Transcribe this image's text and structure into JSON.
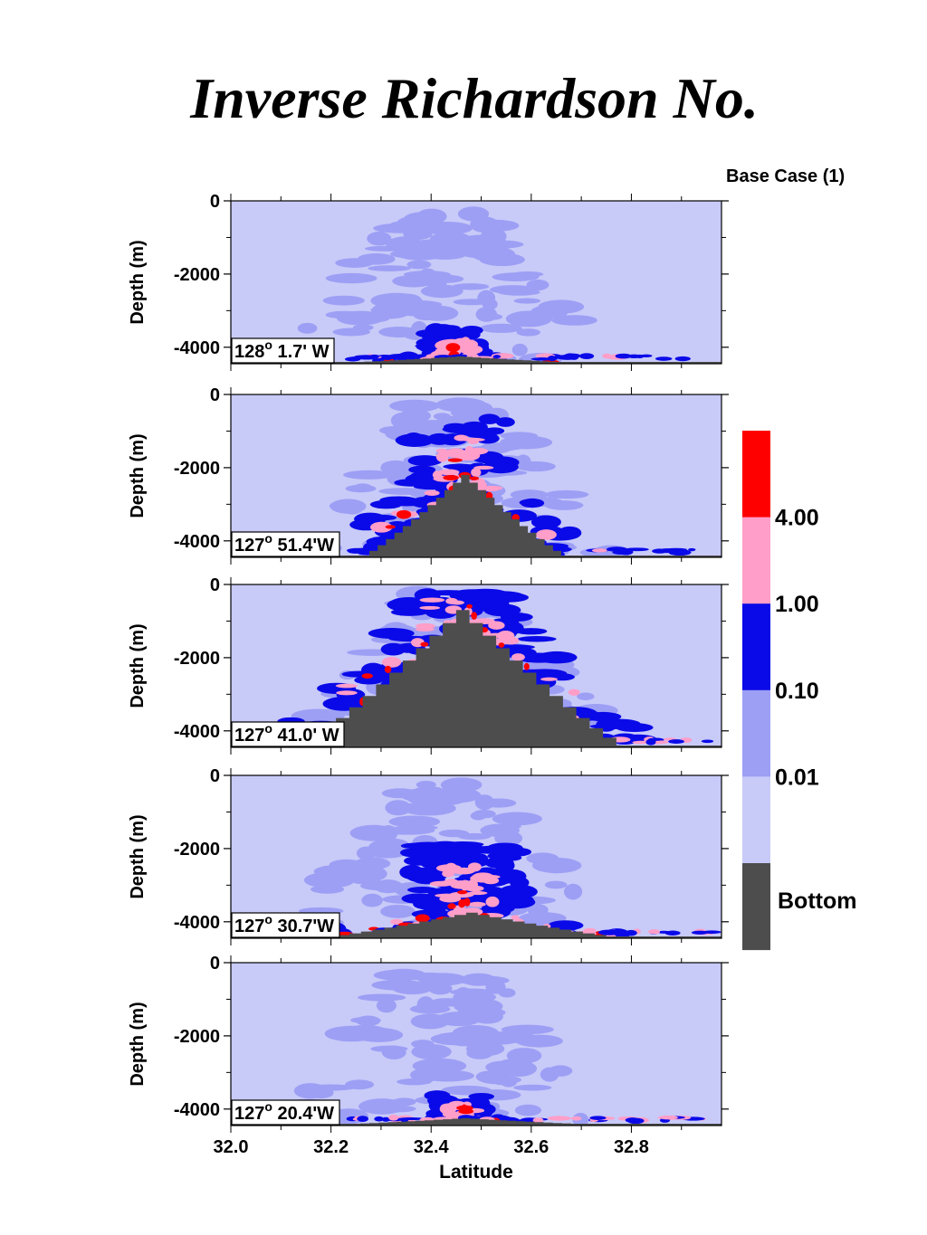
{
  "title": "Inverse Richardson No.",
  "case_label": "Base Case (1)",
  "colors": {
    "bottom": "#4d4d4d",
    "level_0": "#c8caf8",
    "level_1": "#9d9ff5",
    "level_2": "#0a0ae8",
    "level_3": "#ff9ec8",
    "level_4": "#ff0000"
  },
  "chart_data": {
    "type": "heatmap",
    "xlabel": "Latitude",
    "ylabel": "Depth (m)",
    "xlim": [
      32.0,
      32.98
    ],
    "ylim": [
      -4450,
      0
    ],
    "x_ticks": [
      "32.0",
      "32.2",
      "32.4",
      "32.6",
      "32.8"
    ],
    "x_tick_values": [
      32.0,
      32.2,
      32.4,
      32.6,
      32.8
    ],
    "y_ticks": [
      "0",
      "-2000",
      "-4000"
    ],
    "y_tick_values": [
      0,
      -2000,
      -4000
    ],
    "colorbar": {
      "levels": [
        "4.00",
        "1.00",
        "0.10",
        "0.01"
      ],
      "bottom_label": "Bottom"
    },
    "panels": [
      {
        "location": "128° 1.7' W",
        "location_deg": "128",
        "location_min": " 1.7' W",
        "seamount_peak_depth": -4250,
        "seamount_center_lat": 32.45,
        "seamount_halfwidth_lat": 0.2,
        "mixing_center_lat": 32.42,
        "mixing_intensity": 0.35
      },
      {
        "location": "127° 51.4'W",
        "location_deg": "127",
        "location_min": " 51.4'W",
        "seamount_peak_depth": -2200,
        "seamount_center_lat": 32.46,
        "seamount_halfwidth_lat": 0.2,
        "mixing_center_lat": 32.45,
        "mixing_intensity": 0.75
      },
      {
        "location": "127° 41.0' W",
        "location_deg": "127",
        "location_min": " 41.0' W",
        "seamount_peak_depth": -700,
        "seamount_center_lat": 32.45,
        "seamount_halfwidth_lat": 0.32,
        "mixing_center_lat": 32.45,
        "mixing_intensity": 1.0
      },
      {
        "location": "127°  30.7'W",
        "location_deg": "127",
        "location_min": "  30.7'W",
        "seamount_peak_depth": -3750,
        "seamount_center_lat": 32.47,
        "seamount_halfwidth_lat": 0.28,
        "mixing_center_lat": 32.43,
        "mixing_intensity": 0.85
      },
      {
        "location": "127° 20.4'W",
        "location_deg": "127",
        "location_min": " 20.4'W",
        "seamount_peak_depth": -4250,
        "seamount_center_lat": 32.46,
        "seamount_halfwidth_lat": 0.22,
        "mixing_center_lat": 32.43,
        "mixing_intensity": 0.3
      }
    ]
  }
}
